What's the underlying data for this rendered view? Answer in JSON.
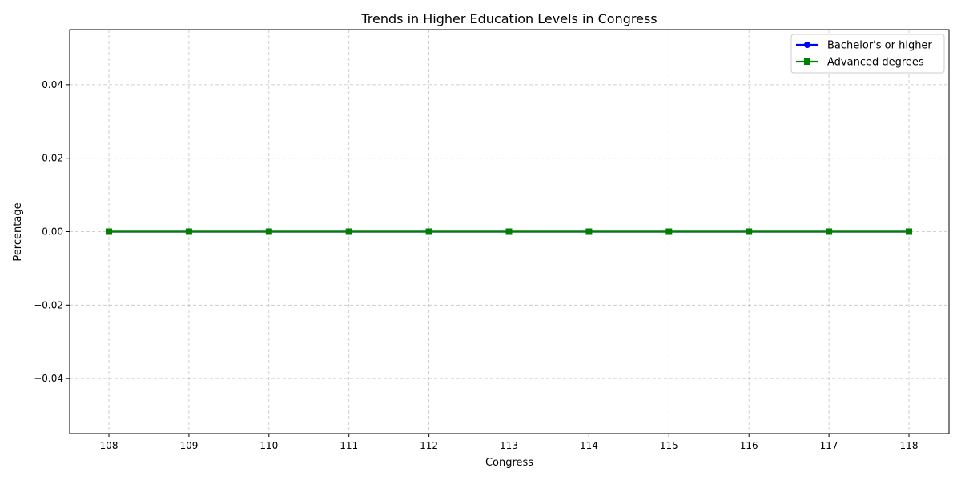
{
  "chart_data": {
    "type": "line",
    "title": "Trends in Higher Education Levels in Congress",
    "xlabel": "Congress",
    "ylabel": "Percentage",
    "x": [
      "108",
      "109",
      "110",
      "111",
      "112",
      "113",
      "114",
      "115",
      "116",
      "117",
      "118"
    ],
    "ylim": [
      -0.055,
      0.055
    ],
    "yticks": [
      -0.04,
      -0.02,
      0.0,
      0.02,
      0.04
    ],
    "ytick_labels": [
      "−0.04",
      "−0.02",
      "0.00",
      "0.02",
      "0.04"
    ],
    "grid": true,
    "legend_position": "top-right",
    "series": [
      {
        "name": "Bachelor's or higher",
        "values": [
          0,
          0,
          0,
          0,
          0,
          0,
          0,
          0,
          0,
          0,
          0
        ],
        "color": "#0000ff",
        "marker": "circle"
      },
      {
        "name": "Advanced degrees",
        "values": [
          0,
          0,
          0,
          0,
          0,
          0,
          0,
          0,
          0,
          0,
          0
        ],
        "color": "#008000",
        "marker": "square"
      }
    ]
  }
}
